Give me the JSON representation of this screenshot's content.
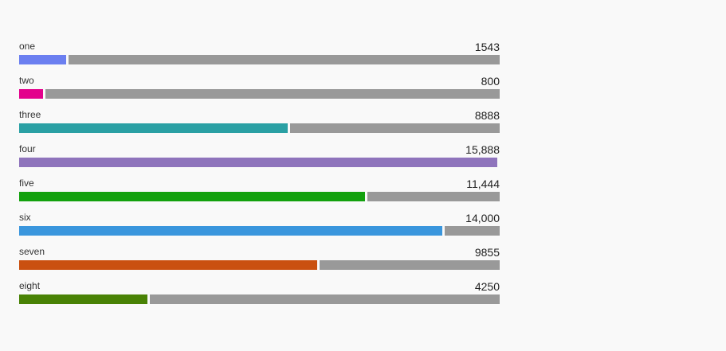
{
  "chart_data": {
    "type": "bar",
    "orientation": "horizontal",
    "title": "",
    "max": 15888,
    "remainder_color": "#999999",
    "categories": [
      "one",
      "two",
      "three",
      "four",
      "five",
      "six",
      "seven",
      "eight"
    ],
    "values": [
      1543,
      800,
      8888,
      15888,
      11444,
      14000,
      9855,
      4250
    ],
    "value_labels": [
      "1543",
      "800",
      "8888",
      "15,888",
      "11,444",
      "14,000",
      "9855",
      "4250"
    ],
    "colors": [
      "#6b7ff0",
      "#e3008c",
      "#2aa0a4",
      "#8f74bc",
      "#13a10e",
      "#3a96dd",
      "#ca5010",
      "#498205"
    ]
  }
}
